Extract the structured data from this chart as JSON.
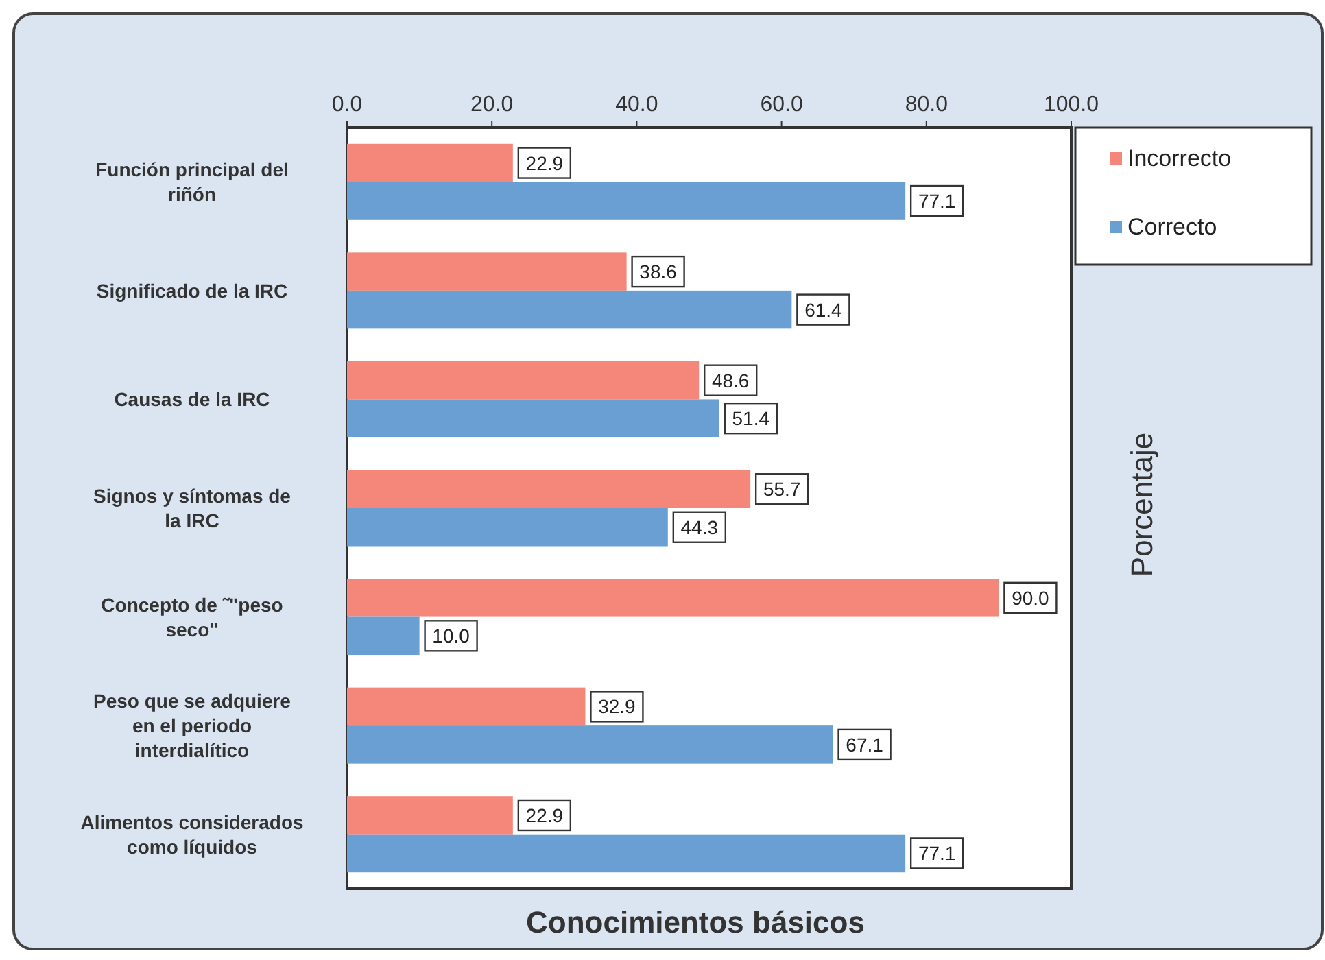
{
  "chart_data": {
    "type": "bar",
    "orientation": "horizontal",
    "xlabel": "Conocimientos básicos",
    "y2label": "Porcentaje",
    "categories": [
      "Función principal del riñón",
      "Significado de la IRC",
      "Causas de la IRC",
      "Signos y síntomas de la IRC",
      "Concepto de ˜\"peso seco\"",
      "Peso que se adquiere en el periodo interdialítico",
      "Alimentos considerados como líquidos"
    ],
    "series": [
      {
        "name": "Incorrecto",
        "color": "#f4877a",
        "values": [
          22.9,
          38.6,
          48.6,
          55.7,
          90,
          32.9,
          22.9
        ],
        "value_labels": [
          "22.9",
          "38.6",
          "48.6",
          "55.7",
          "90.0",
          "32.9",
          "22.9"
        ]
      },
      {
        "name": "Correcto",
        "color": "#6a9fd4",
        "values": [
          77.1,
          61.4,
          51.4,
          44.3,
          10,
          67.1,
          77.1
        ],
        "value_labels": [
          "77.1",
          "61.4",
          "51.4",
          "44.3",
          "10.0",
          "67.1",
          "77.1"
        ]
      }
    ],
    "xlim": [
      0,
      100
    ],
    "xticks": [
      {
        "value": 0,
        "label": "0.0"
      },
      {
        "value": 20,
        "label": "20.0"
      },
      {
        "value": 40,
        "label": "40.0"
      },
      {
        "value": 60,
        "label": "60.0"
      },
      {
        "value": 80,
        "label": "80.0"
      },
      {
        "value": 100,
        "label": "100.0"
      }
    ],
    "legend": "top right",
    "grid": false
  }
}
